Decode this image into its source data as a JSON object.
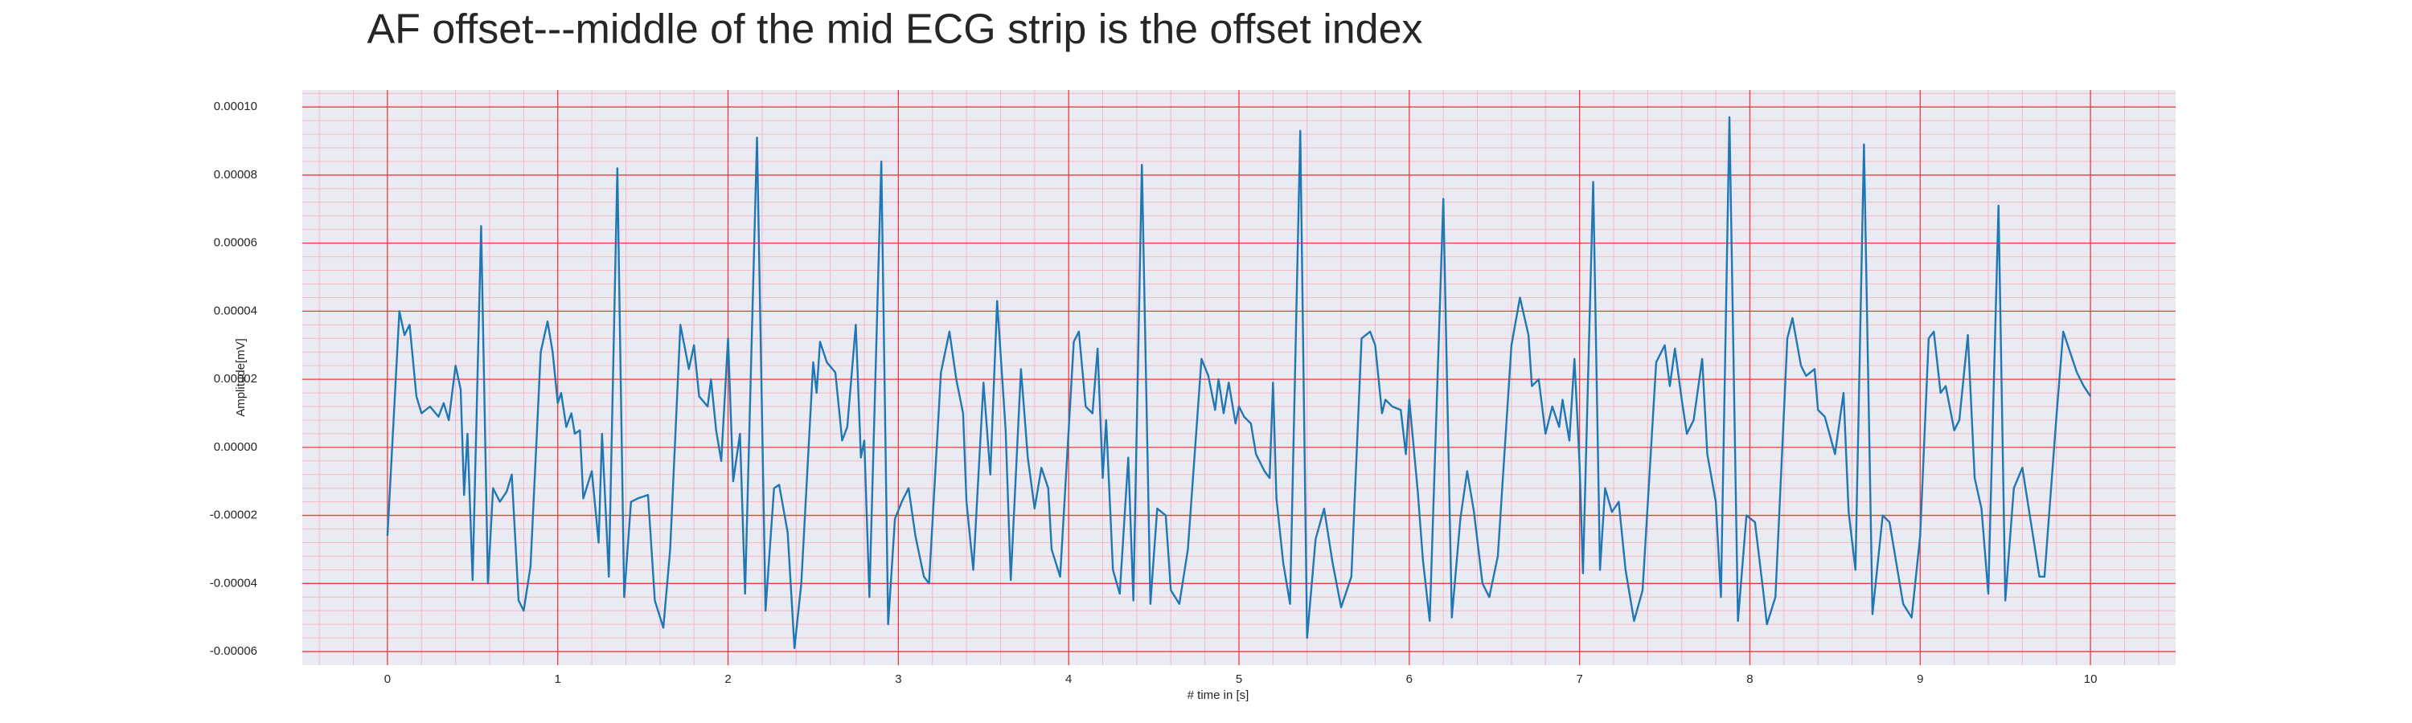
{
  "chart_data": {
    "type": "line",
    "title": "AF offset---middle of the mid ECG strip is the offset index",
    "x_label": "# time in [s]",
    "y_label": "Amplitude[mV]",
    "color": "#1f77b4",
    "grid": true,
    "grid_color": "#f03a3a",
    "minor_grid": true,
    "minor_grid_color": "#f5b8c4",
    "background": "#eaeaf2",
    "xlim": [
      -0.5,
      10.5
    ],
    "ylim": [
      -6.4e-05,
      0.000105
    ],
    "xticks": [
      0,
      1,
      2,
      3,
      4,
      5,
      6,
      7,
      8,
      9,
      10
    ],
    "yticks": [
      -6e-05,
      -4e-05,
      -2e-05,
      {
        "value": 0,
        "label": "0.00000"
      },
      2e-05,
      4e-05,
      6e-05,
      8e-05,
      {
        "value": 0.0001,
        "label": "0.00010"
      }
    ],
    "x": [
      0,
      0.07,
      0.1,
      0.13,
      0.17,
      0.2,
      0.25,
      0.3,
      0.33,
      0.36,
      0.4,
      0.43,
      0.45,
      0.47,
      0.5,
      0.55,
      0.59,
      0.62,
      0.66,
      0.7,
      0.73,
      0.77,
      0.8,
      0.84,
      0.9,
      0.94,
      0.97,
      1.0,
      1.02,
      1.05,
      1.08,
      1.1,
      1.13,
      1.15,
      1.2,
      1.24,
      1.26,
      1.3,
      1.35,
      1.39,
      1.43,
      1.47,
      1.53,
      1.57,
      1.62,
      1.66,
      1.72,
      1.77,
      1.8,
      1.83,
      1.88,
      1.9,
      1.93,
      1.96,
      2.0,
      2.03,
      2.07,
      2.1,
      2.17,
      2.22,
      2.27,
      2.3,
      2.35,
      2.39,
      2.43,
      2.5,
      2.52,
      2.54,
      2.58,
      2.63,
      2.67,
      2.7,
      2.75,
      2.78,
      2.8,
      2.83,
      2.9,
      2.94,
      2.98,
      3.02,
      3.06,
      3.1,
      3.15,
      3.18,
      3.25,
      3.3,
      3.34,
      3.38,
      3.4,
      3.44,
      3.5,
      3.54,
      3.58,
      3.63,
      3.66,
      3.72,
      3.76,
      3.8,
      3.84,
      3.88,
      3.9,
      3.95,
      4.03,
      4.06,
      4.1,
      4.14,
      4.17,
      4.2,
      4.22,
      4.26,
      4.3,
      4.35,
      4.38,
      4.43,
      4.48,
      4.52,
      4.57,
      4.6,
      4.65,
      4.7,
      4.78,
      4.82,
      4.86,
      4.88,
      4.91,
      4.94,
      4.98,
      5.0,
      5.03,
      5.07,
      5.1,
      5.15,
      5.18,
      5.2,
      5.22,
      5.26,
      5.3,
      5.36,
      5.4,
      5.45,
      5.5,
      5.55,
      5.6,
      5.66,
      5.72,
      5.77,
      5.8,
      5.84,
      5.86,
      5.9,
      5.95,
      5.98,
      6.0,
      6.05,
      6.08,
      6.12,
      6.2,
      6.25,
      6.3,
      6.34,
      6.38,
      6.43,
      6.47,
      6.52,
      6.6,
      6.65,
      6.7,
      6.72,
      6.76,
      6.8,
      6.84,
      6.88,
      6.9,
      6.94,
      6.97,
      7.0,
      7.02,
      7.08,
      7.12,
      7.15,
      7.19,
      7.23,
      7.27,
      7.32,
      7.37,
      7.45,
      7.5,
      7.53,
      7.56,
      7.6,
      7.63,
      7.67,
      7.72,
      7.75,
      7.8,
      7.83,
      7.88,
      7.93,
      7.98,
      8.03,
      8.08,
      8.1,
      8.15,
      8.22,
      8.25,
      8.3,
      8.33,
      8.38,
      8.4,
      8.44,
      8.5,
      8.55,
      8.58,
      8.62,
      8.67,
      8.72,
      8.78,
      8.82,
      8.86,
      8.9,
      8.95,
      9.0,
      9.05,
      9.08,
      9.12,
      9.15,
      9.2,
      9.23,
      9.28,
      9.32,
      9.36,
      9.4,
      9.46,
      9.5,
      9.55,
      9.6,
      9.65,
      9.7,
      9.73,
      9.8,
      9.84,
      9.88,
      9.92,
      9.96,
      10.0
    ],
    "values": [
      -2.6e-05,
      4e-05,
      3.3e-05,
      3.6e-05,
      1.5e-05,
      1e-05,
      1.2e-05,
      9e-06,
      1.3e-05,
      8e-06,
      2.4e-05,
      1.7e-05,
      -1.4e-05,
      4e-06,
      -3.9e-05,
      6.5e-05,
      -4e-05,
      -1.2e-05,
      -1.6e-05,
      -1.3e-05,
      -8e-06,
      -4.5e-05,
      -4.8e-05,
      -3.5e-05,
      2.8e-05,
      3.7e-05,
      2.8e-05,
      1.3e-05,
      1.6e-05,
      6e-06,
      1e-05,
      4e-06,
      5e-06,
      -1.5e-05,
      -7e-06,
      -2.8e-05,
      4e-06,
      -3.8e-05,
      8.2e-05,
      -4.4e-05,
      -1.6e-05,
      -1.5e-05,
      -1.4e-05,
      -4.5e-05,
      -5.3e-05,
      -3e-05,
      3.6e-05,
      2.3e-05,
      3e-05,
      1.5e-05,
      1.2e-05,
      2e-05,
      5e-06,
      -4e-06,
      3.2e-05,
      -1e-05,
      4e-06,
      -4.3e-05,
      9.1e-05,
      -4.8e-05,
      -1.2e-05,
      -1.1e-05,
      -2.5e-05,
      -5.9e-05,
      -4e-05,
      2.5e-05,
      1.6e-05,
      3.1e-05,
      2.5e-05,
      2.2e-05,
      2e-06,
      6e-06,
      3.6e-05,
      -3e-06,
      2e-06,
      -4.4e-05,
      8.4e-05,
      -5.2e-05,
      -2.1e-05,
      -1.6e-05,
      -1.2e-05,
      -2.6e-05,
      -3.8e-05,
      -4e-05,
      2.2e-05,
      3.4e-05,
      2e-05,
      1e-05,
      -1.6e-05,
      -3.6e-05,
      1.9e-05,
      -8e-06,
      4.3e-05,
      5e-06,
      -3.9e-05,
      2.3e-05,
      -3e-06,
      -1.8e-05,
      -6e-06,
      -1.2e-05,
      -3e-05,
      -3.8e-05,
      3.1e-05,
      3.4e-05,
      1.2e-05,
      1e-05,
      2.9e-05,
      -9e-06,
      8e-06,
      -3.6e-05,
      -4.3e-05,
      -3e-06,
      -4.5e-05,
      8.3e-05,
      -4.6e-05,
      -1.8e-05,
      -2e-05,
      -4.2e-05,
      -4.6e-05,
      -3e-05,
      2.6e-05,
      2.1e-05,
      1.1e-05,
      2e-05,
      1e-05,
      1.9e-05,
      7e-06,
      1.2e-05,
      9e-06,
      7e-06,
      -2e-06,
      -7e-06,
      -9e-06,
      1.9e-05,
      -1.5e-05,
      -3.4e-05,
      -4.6e-05,
      9.3e-05,
      -5.6e-05,
      -2.7e-05,
      -1.8e-05,
      -3.4e-05,
      -4.7e-05,
      -3.8e-05,
      3.2e-05,
      3.4e-05,
      3e-05,
      1e-05,
      1.4e-05,
      1.2e-05,
      1.1e-05,
      -2e-06,
      1.4e-05,
      -1.3e-05,
      -3.3e-05,
      -5.1e-05,
      7.3e-05,
      -5e-05,
      -2.1e-05,
      -7e-06,
      -1.9e-05,
      -4e-05,
      -4.4e-05,
      -3.2e-05,
      3e-05,
      4.4e-05,
      3.3e-05,
      1.8e-05,
      2e-05,
      4e-06,
      1.2e-05,
      6e-06,
      1.4e-05,
      2e-06,
      2.6e-05,
      -5e-06,
      -3.7e-05,
      7.8e-05,
      -3.6e-05,
      -1.2e-05,
      -1.9e-05,
      -1.6e-05,
      -3.6e-05,
      -5.1e-05,
      -4.2e-05,
      2.5e-05,
      3e-05,
      1.8e-05,
      2.9e-05,
      1.4e-05,
      4e-06,
      8e-06,
      2.6e-05,
      -2e-06,
      -1.6e-05,
      -4.4e-05,
      9.7e-05,
      -5.1e-05,
      -2e-05,
      -2.2e-05,
      -4.3e-05,
      -5.2e-05,
      -4.4e-05,
      3.2e-05,
      3.8e-05,
      2.4e-05,
      2.1e-05,
      2.3e-05,
      1.1e-05,
      9e-06,
      -2e-06,
      1.6e-05,
      -1.9e-05,
      -3.6e-05,
      8.9e-05,
      -4.9e-05,
      -2e-05,
      -2.2e-05,
      -3.4e-05,
      -4.6e-05,
      -5e-05,
      -2.6e-05,
      3.2e-05,
      3.4e-05,
      1.6e-05,
      1.8e-05,
      5e-06,
      8e-06,
      3.3e-05,
      -9e-06,
      -1.8e-05,
      -4.3e-05,
      7.1e-05,
      -4.5e-05,
      -1.2e-05,
      -6e-06,
      -2.2e-05,
      -3.8e-05,
      -3.8e-05,
      9e-06,
      3.4e-05,
      2.8e-05,
      2.2e-05,
      1.8e-05,
      1.5e-05
    ]
  }
}
